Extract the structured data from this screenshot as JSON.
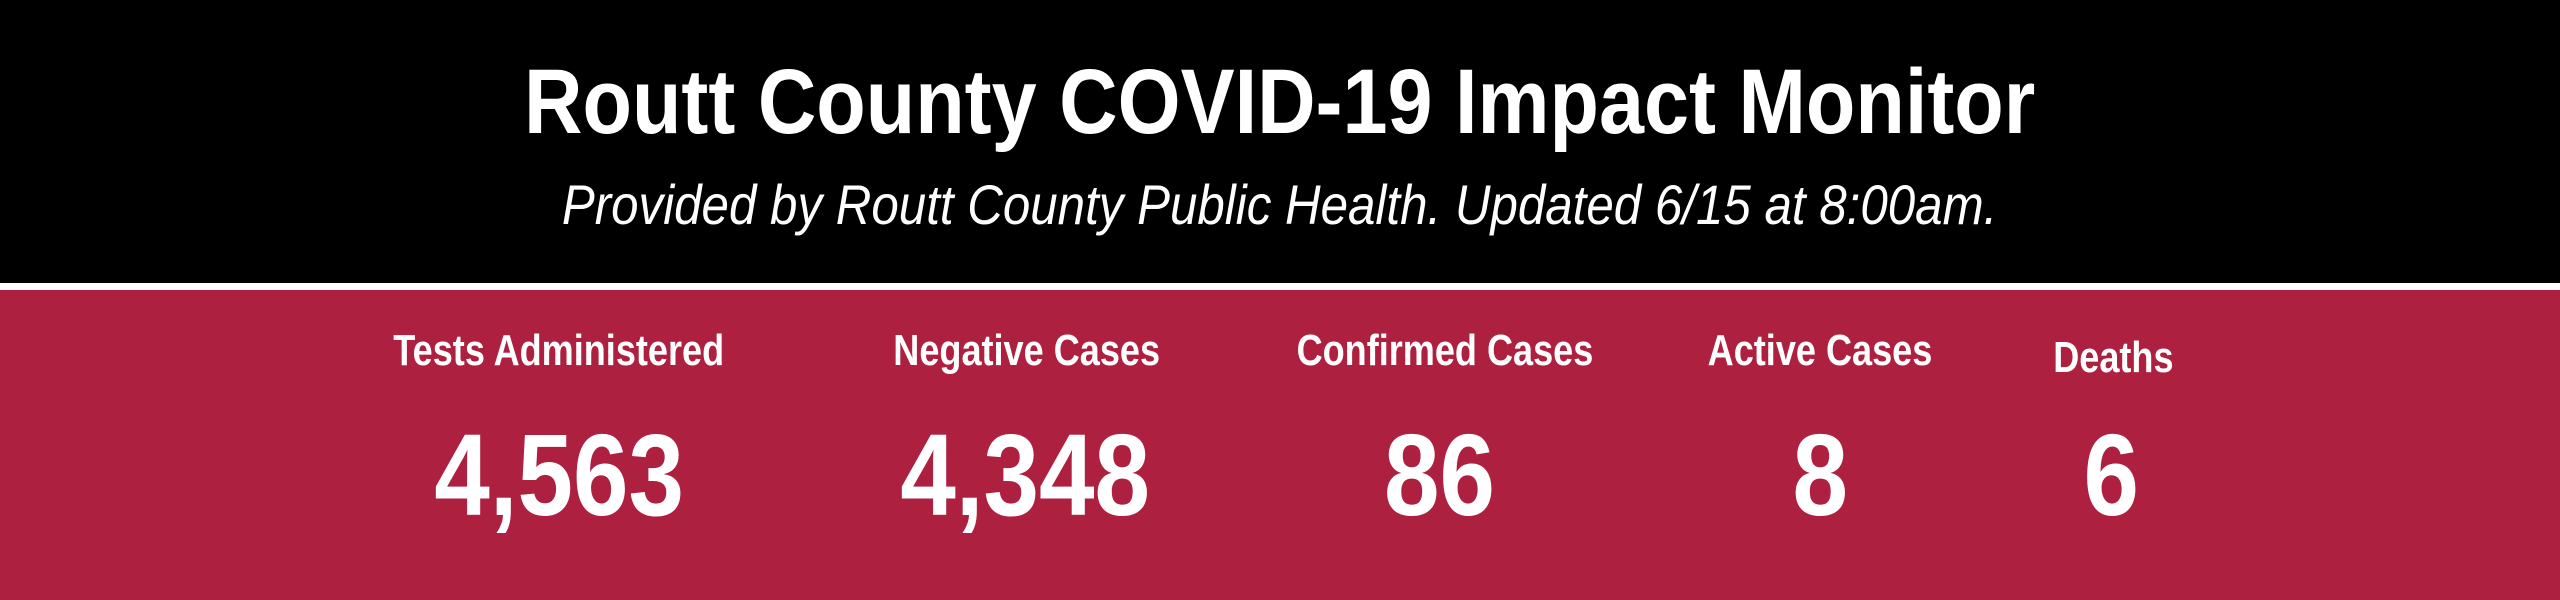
{
  "header": {
    "title": "Routt County COVID-19 Impact Monitor",
    "subtitle": "Provided by Routt County Public Health. Updated 6/15 at 8:00am."
  },
  "colors": {
    "header_bg": "#000000",
    "panel_bg": "#ae2040",
    "text": "#ffffff"
  },
  "stats": [
    {
      "label": "Tests Administered",
      "value": "4,563"
    },
    {
      "label": "Negative Cases",
      "value": "4,348"
    },
    {
      "label": "Confirmed Cases",
      "value": "86"
    },
    {
      "label": "Active Cases",
      "value": "8"
    },
    {
      "label": "Deaths",
      "value": "6"
    }
  ]
}
